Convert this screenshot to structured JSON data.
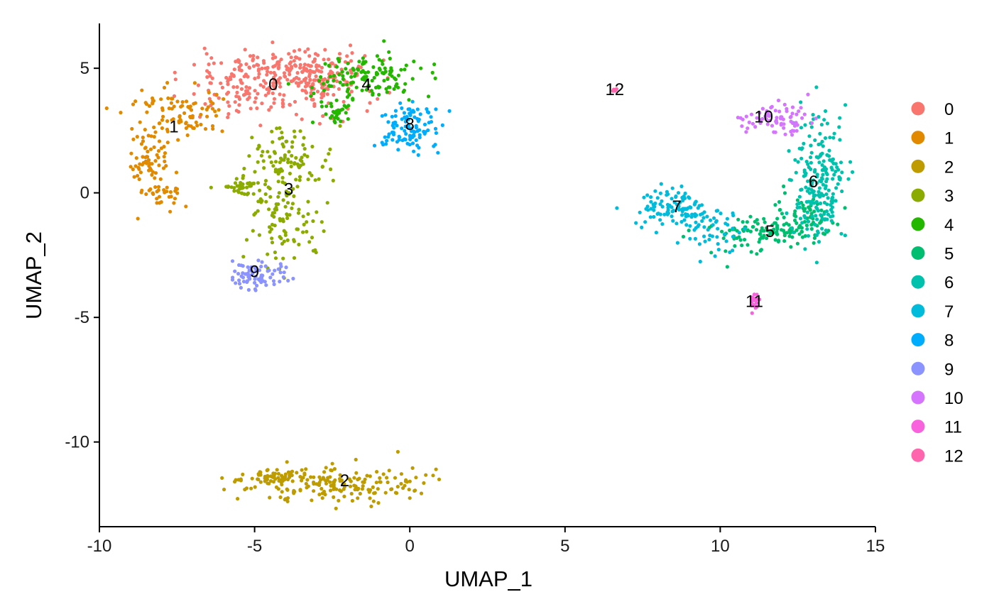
{
  "chart_data": {
    "type": "scatter",
    "title": "",
    "xlabel": "UMAP_1",
    "ylabel": "UMAP_2",
    "xlim": [
      -10,
      15
    ],
    "ylim": [
      -13.4,
      6.8
    ],
    "xticks": [
      -10,
      -5,
      0,
      5,
      10,
      15
    ],
    "yticks": [
      -10,
      -5,
      0,
      5
    ],
    "grid": false,
    "legend": "right",
    "clusters": [
      {
        "name": "0",
        "color": "#F8766D",
        "centroid": [
          -4.4,
          4.3
        ],
        "label_pos": [
          -4.4,
          4.3
        ]
      },
      {
        "name": "1",
        "color": "#E18A00",
        "centroid": [
          -7.6,
          2.6
        ],
        "label_pos": [
          -7.6,
          2.6
        ]
      },
      {
        "name": "2",
        "color": "#BE9C00",
        "centroid": [
          -2.1,
          -11.6
        ],
        "label_pos": [
          -2.1,
          -11.6
        ]
      },
      {
        "name": "3",
        "color": "#8CAB00",
        "centroid": [
          -3.9,
          0.1
        ],
        "label_pos": [
          -3.9,
          0.1
        ]
      },
      {
        "name": "4",
        "color": "#24B700",
        "centroid": [
          -1.4,
          4.3
        ],
        "label_pos": [
          -1.4,
          4.3
        ]
      },
      {
        "name": "5",
        "color": "#00BE70",
        "centroid": [
          11.6,
          -1.6
        ],
        "label_pos": [
          11.6,
          -1.6
        ]
      },
      {
        "name": "6",
        "color": "#00C1AB",
        "centroid": [
          13.0,
          0.4
        ],
        "label_pos": [
          13.0,
          0.4
        ]
      },
      {
        "name": "7",
        "color": "#00BBDA",
        "centroid": [
          8.6,
          -0.6
        ],
        "label_pos": [
          8.6,
          -0.6
        ]
      },
      {
        "name": "8",
        "color": "#00ACFC",
        "centroid": [
          0.0,
          2.7
        ],
        "label_pos": [
          0.0,
          2.7
        ]
      },
      {
        "name": "9",
        "color": "#8B93FF",
        "centroid": [
          -5.0,
          -3.2
        ],
        "label_pos": [
          -5.0,
          -3.2
        ]
      },
      {
        "name": "10",
        "color": "#D575FE",
        "centroid": [
          11.4,
          3.0
        ],
        "label_pos": [
          11.4,
          3.0
        ]
      },
      {
        "name": "11",
        "color": "#F962DD",
        "centroid": [
          11.1,
          -4.4
        ],
        "label_pos": [
          11.1,
          -4.4
        ]
      },
      {
        "name": "12",
        "color": "#FF65AC",
        "centroid": [
          6.6,
          4.1
        ],
        "label_pos": [
          6.6,
          4.1
        ]
      }
    ]
  }
}
